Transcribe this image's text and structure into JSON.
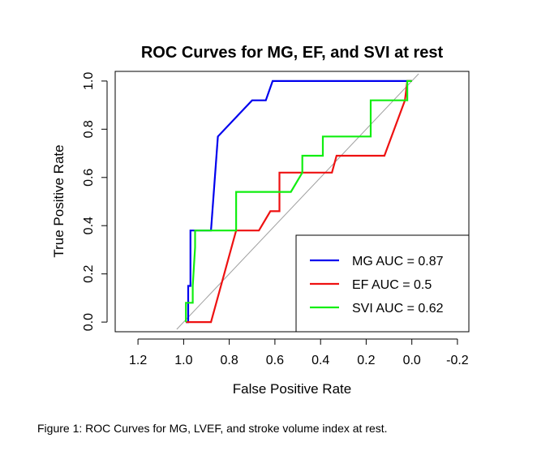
{
  "chart_data": {
    "type": "line",
    "title": "ROC Curves for MG, EF, and SVI at rest",
    "xlabel": "False Positive Rate",
    "ylabel": "True Positive Rate",
    "x_axis_reversed": true,
    "xlim": [
      1.3,
      -0.25
    ],
    "ylim": [
      -0.04,
      1.04
    ],
    "x_ticks": [
      1.2,
      1.0,
      0.8,
      0.6,
      0.4,
      0.2,
      0.0,
      -0.2
    ],
    "x_tick_labels": [
      "1.2",
      "1.0",
      "0.8",
      "0.6",
      "0.4",
      "0.2",
      "0.0",
      "-0.2"
    ],
    "y_ticks": [
      0.0,
      0.2,
      0.4,
      0.6,
      0.8,
      1.0
    ],
    "y_tick_labels": [
      "0.0",
      "0.2",
      "0.4",
      "0.6",
      "0.8",
      "1.0"
    ],
    "diagonal": {
      "x": [
        1.03,
        -0.03
      ],
      "y": [
        -0.03,
        1.03
      ],
      "color": "#a0a0a0"
    },
    "legend_position": "bottom-right",
    "series": [
      {
        "name": "MG AUC = 0.87",
        "color": "#0000ee",
        "x": [
          0.99,
          0.98,
          0.98,
          0.97,
          0.97,
          0.96,
          0.96,
          0.88,
          0.85,
          0.7,
          0.64,
          0.61,
          0.03,
          0.0
        ],
        "y": [
          0.0,
          0.0,
          0.15,
          0.15,
          0.38,
          0.38,
          0.38,
          0.38,
          0.77,
          0.92,
          0.92,
          1.0,
          1.0,
          1.0
        ]
      },
      {
        "name": "EF AUC = 0.5",
        "color": "#ee1111",
        "x": [
          0.99,
          0.88,
          0.77,
          0.67,
          0.62,
          0.58,
          0.58,
          0.37,
          0.35,
          0.33,
          0.12,
          0.03,
          0.02,
          0.0
        ],
        "y": [
          0.0,
          0.0,
          0.38,
          0.38,
          0.46,
          0.46,
          0.62,
          0.62,
          0.62,
          0.69,
          0.69,
          0.92,
          1.0,
          1.0
        ]
      },
      {
        "name": "SVI AUC = 0.62",
        "color": "#11ee11",
        "x": [
          0.99,
          0.99,
          0.96,
          0.96,
          0.95,
          0.95,
          0.77,
          0.77,
          0.56,
          0.53,
          0.48,
          0.48,
          0.39,
          0.39,
          0.18,
          0.18,
          0.02,
          0.02,
          0.0
        ],
        "y": [
          0.0,
          0.08,
          0.08,
          0.15,
          0.31,
          0.38,
          0.38,
          0.54,
          0.54,
          0.54,
          0.62,
          0.69,
          0.69,
          0.77,
          0.77,
          0.92,
          0.92,
          1.0,
          1.0
        ]
      }
    ]
  },
  "caption": "Figure 1: ROC Curves for MG, LVEF, and stroke volume index at rest."
}
